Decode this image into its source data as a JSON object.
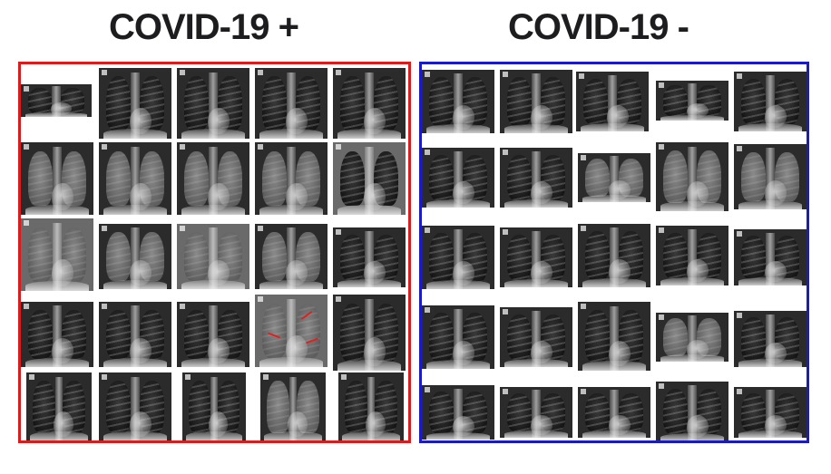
{
  "titles": {
    "positive": "COVID-19 +",
    "negative": "COVID-19 -"
  },
  "colors": {
    "positive_border": "#d71d1d",
    "negative_border": "#1b1bc4",
    "title_text": "#1d1d1f"
  }
}
